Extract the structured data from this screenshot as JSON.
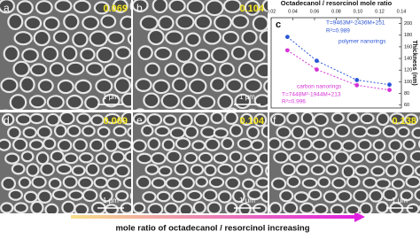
{
  "panels": [
    {
      "label": "a",
      "ratio": "0.069",
      "scale_bar": "1 μm"
    },
    {
      "label": "b",
      "ratio": "0.104",
      "scale_bar": "1 μm"
    },
    {
      "label": "c"
    },
    {
      "label": "d",
      "ratio": "0.069",
      "scale_bar": "1 μm"
    },
    {
      "label": "e",
      "ratio": "0.104",
      "scale_bar": "1 μm"
    },
    {
      "label": "f",
      "ratio": "0.138",
      "scale_bar": "1 μm"
    }
  ],
  "caption": "mole ratio of octadecanol / resorcinol increasing",
  "chart_data": {
    "type": "scatter",
    "xlabel": "Octadecanol / resorcinol mole ratio",
    "ylabel": "Thickness (nm)",
    "xlim": [
      0.02,
      0.14
    ],
    "xticks": [
      0.02,
      0.04,
      0.06,
      0.08,
      {
        "value": 0.1,
        "label": "0.10"
      },
      0.12,
      0.14
    ],
    "ylim": [
      55,
      210
    ],
    "yticks": [
      60,
      80,
      100,
      120,
      140,
      160,
      180,
      200
    ],
    "series": [
      {
        "name": "polymer nanorings",
        "color": "#2b55d6",
        "x": [
          0.035,
          0.062,
          0.099,
          0.129
        ],
        "values": [
          177,
          136,
          103,
          95
        ]
      },
      {
        "name": "carbon nanorings",
        "color": "#d633d6",
        "x": [
          0.035,
          0.062,
          0.099,
          0.129
        ],
        "values": [
          154,
          121,
          94,
          86
        ]
      }
    ],
    "annotations": [
      "T=9463M²-2436M+251",
      "R²=0.989",
      "T=7448M²-1944M+213",
      "R²=0.996"
    ]
  }
}
